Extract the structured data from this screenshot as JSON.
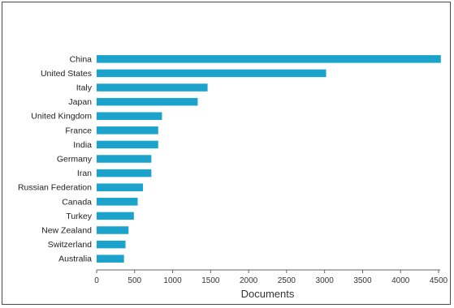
{
  "chart_data": {
    "type": "bar",
    "orientation": "horizontal",
    "categories": [
      "China",
      "United States",
      "Italy",
      "Japan",
      "United Kingdom",
      "France",
      "India",
      "Germany",
      "Iran",
      "Russian Federation",
      "Canada",
      "Turkey",
      "New Zealand",
      "Switzerland",
      "Australia"
    ],
    "values": [
      4530,
      3020,
      1460,
      1330,
      860,
      810,
      810,
      720,
      720,
      610,
      540,
      490,
      420,
      380,
      360
    ],
    "xlabel": "Documents",
    "ylabel": "",
    "xlim": [
      0,
      4500
    ],
    "xticks": [
      "0",
      "500",
      "1000",
      "1500",
      "2000",
      "2500",
      "3000",
      "3500",
      "4000",
      "4500"
    ],
    "grid": false,
    "colors": {
      "bar": "#1ba3cc",
      "axis": "#666666"
    }
  }
}
